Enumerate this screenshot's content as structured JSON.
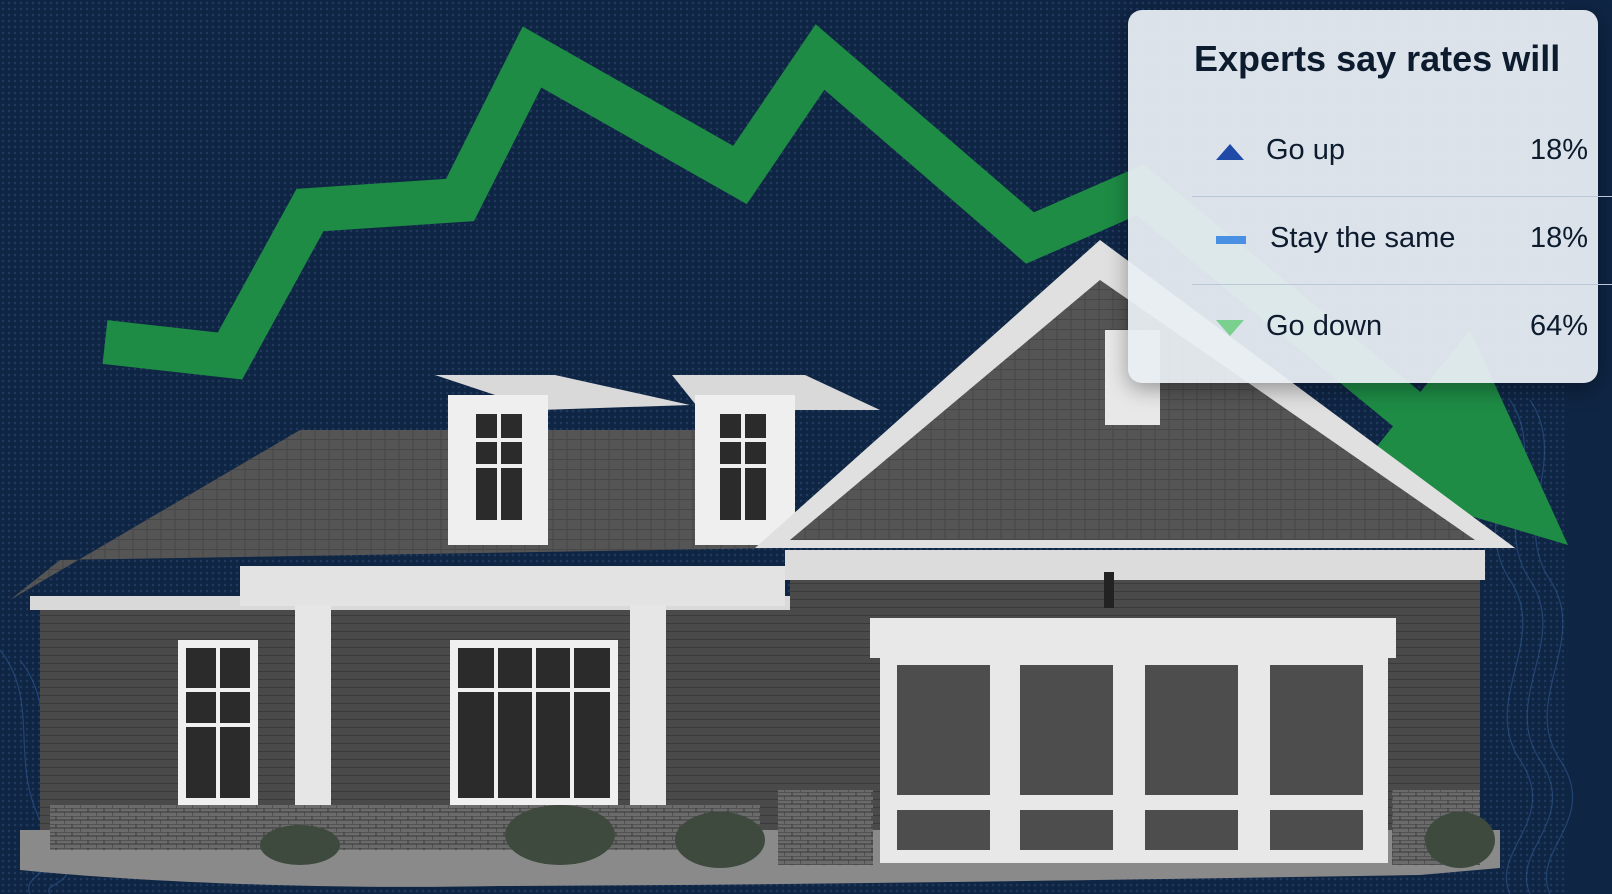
{
  "poll": {
    "title": "Experts say rates will",
    "rows": [
      {
        "label": "Go up",
        "value": "18%",
        "icon": "triangle-up-icon",
        "color": "#1f4aa8"
      },
      {
        "label": "Stay the same",
        "value": "18%",
        "icon": "dash-icon",
        "color": "#4a90e2"
      },
      {
        "label": "Go down",
        "value": "64%",
        "icon": "triangle-down-icon",
        "color": "#79d08f"
      }
    ]
  },
  "colors": {
    "background": "#0f2544",
    "trend_arrow": "#1e8c45",
    "card": "#e9eef3"
  }
}
